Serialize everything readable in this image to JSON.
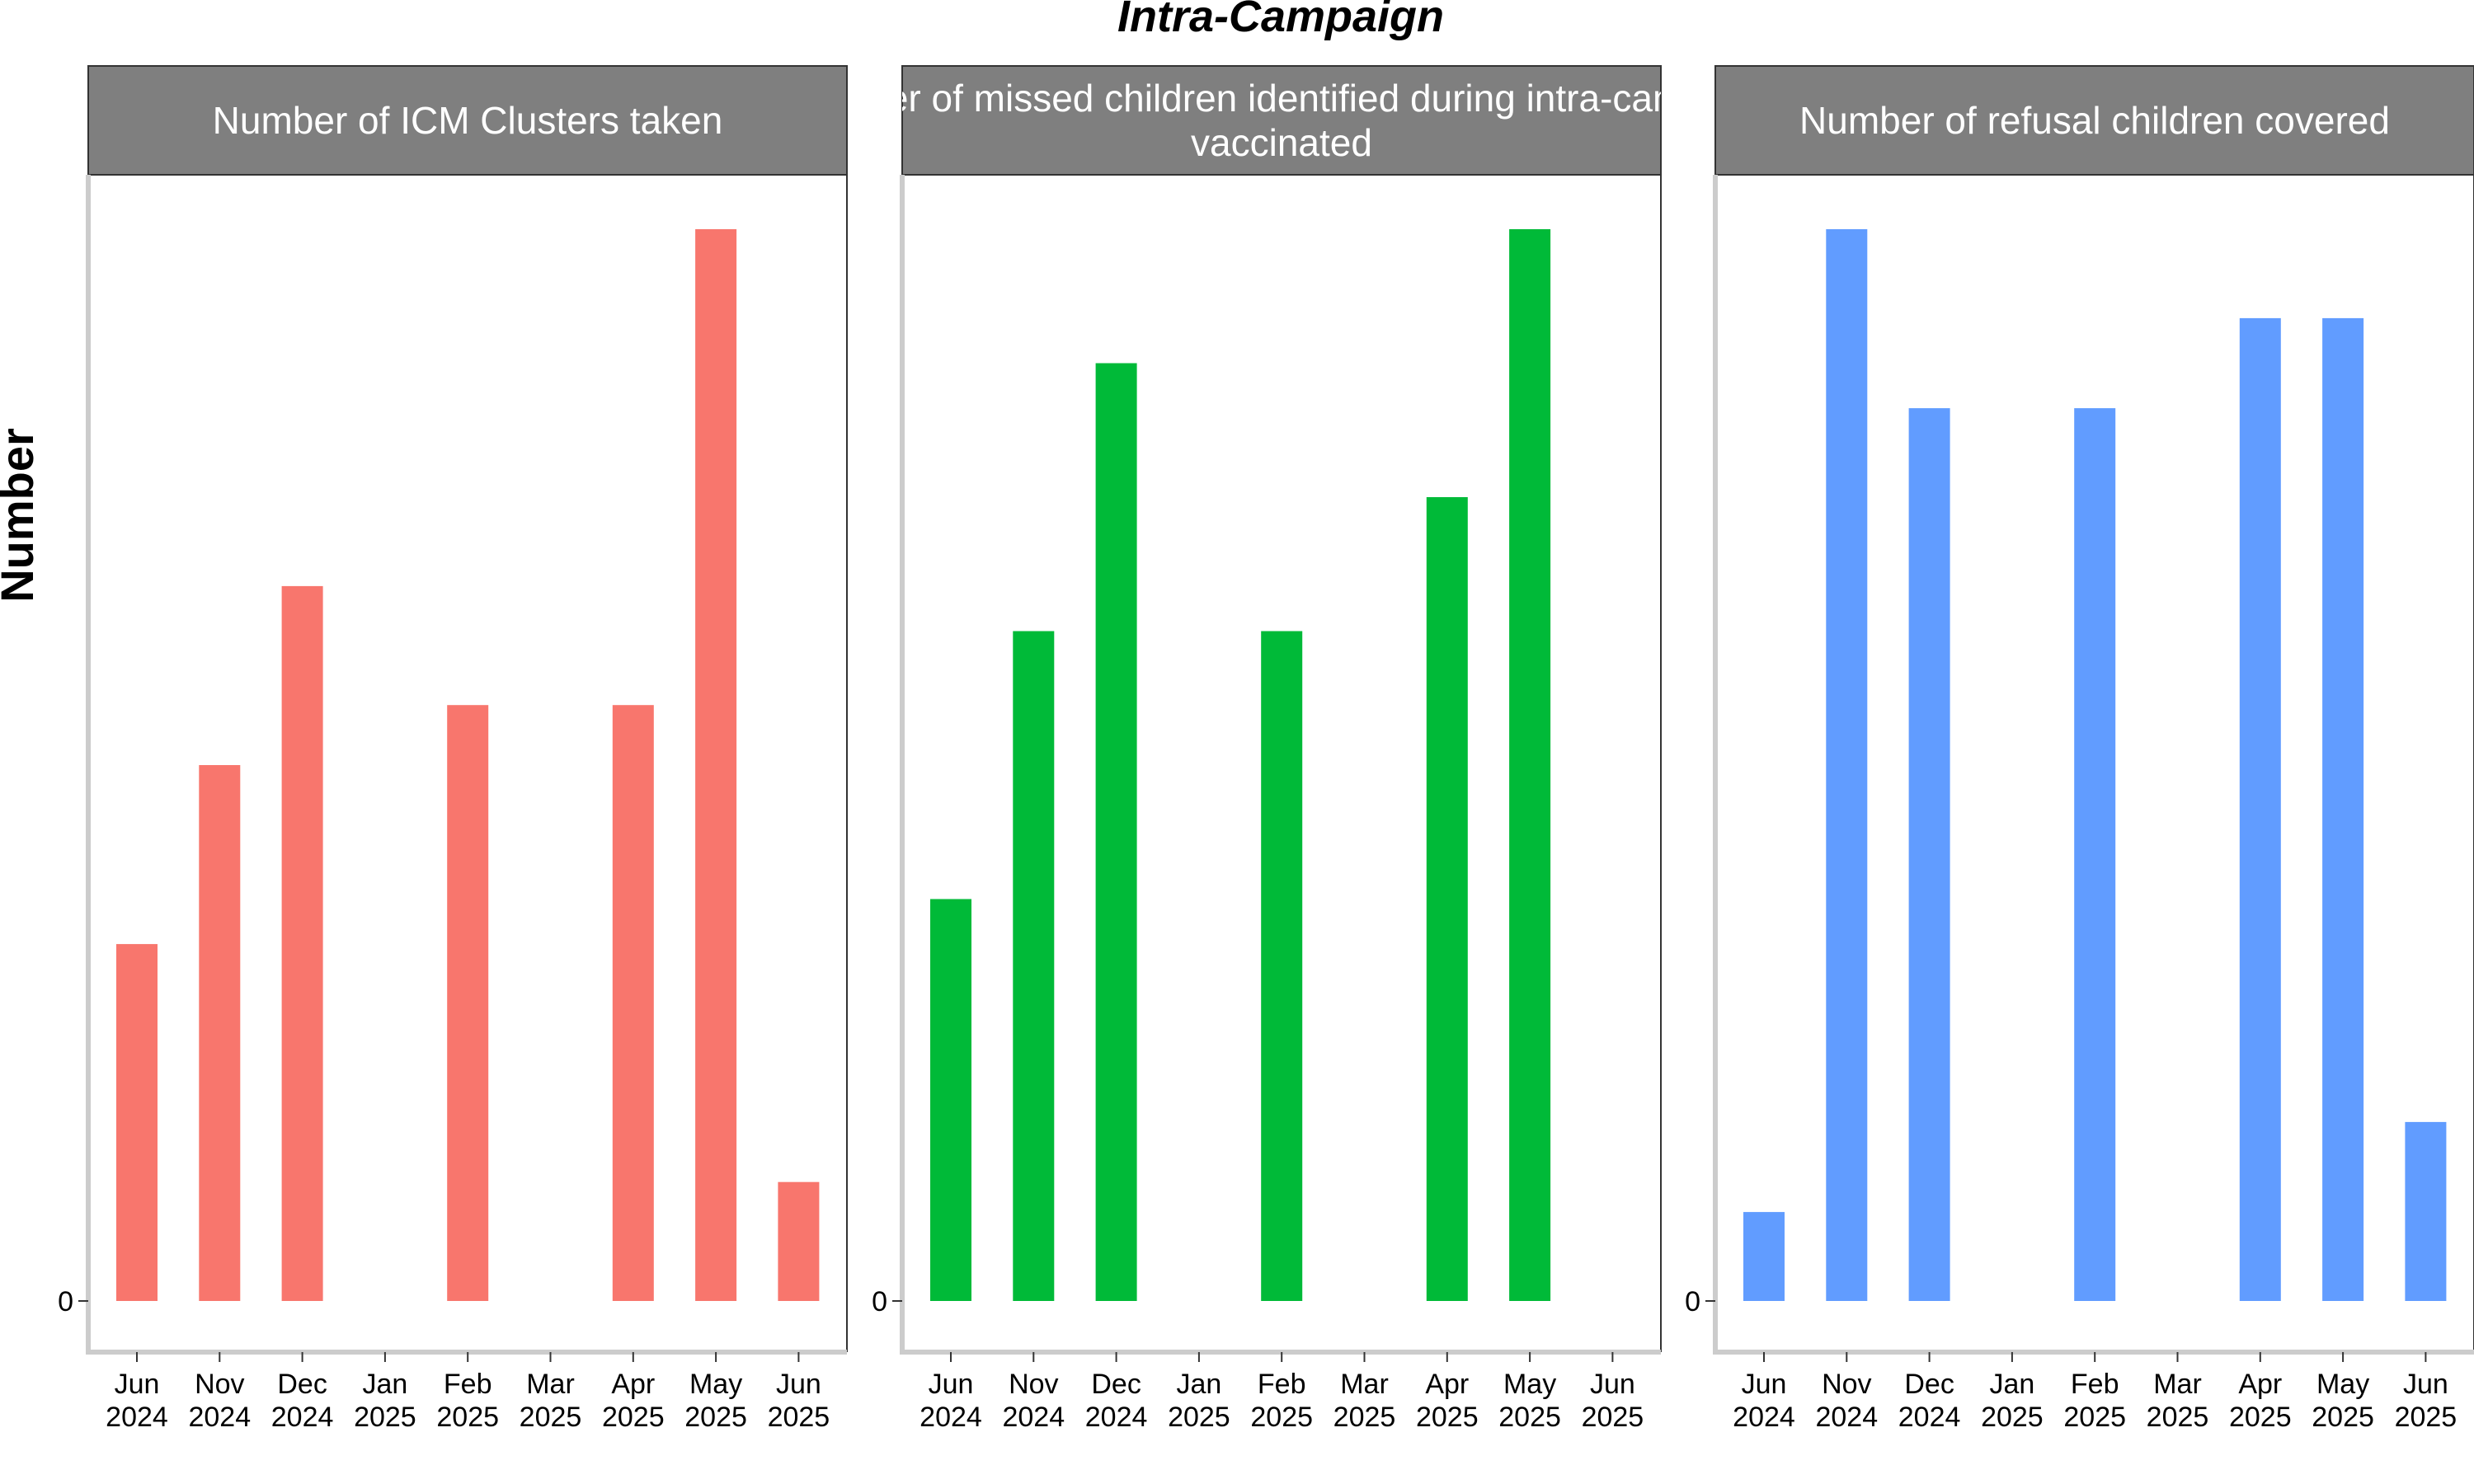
{
  "chart_data": {
    "type": "bar",
    "title": "Intra-Campaign",
    "ylabel": "Number",
    "xlabel": "",
    "categories": [
      "Jun\n2024",
      "Nov\n2024",
      "Dec\n2024",
      "Jan\n2025",
      "Feb\n2025",
      "Mar\n2025",
      "Apr\n2025",
      "May\n2025",
      "Jun\n2025"
    ],
    "y_tick_labels": [
      "0"
    ],
    "ylim": [
      0,
      1.05
    ],
    "grid": false,
    "legend": "none",
    "panels": [
      {
        "strip_lines": [
          "Number of ICM Clusters taken"
        ],
        "color": "#F8766D",
        "values": [
          0.333,
          0.5,
          0.667,
          null,
          0.556,
          null,
          0.556,
          1.0,
          0.111
        ]
      },
      {
        "strip_lines": [
          "Number of missed children identified during intra-campaign",
          "vaccinated"
        ],
        "color": "#00BA38",
        "values": [
          0.375,
          0.625,
          0.875,
          null,
          0.625,
          null,
          0.75,
          1.0,
          null
        ]
      },
      {
        "strip_lines": [
          "Number of refusal children covered"
        ],
        "color": "#619CFF",
        "values": [
          0.083,
          1.0,
          0.833,
          null,
          0.833,
          null,
          0.917,
          0.917,
          0.167
        ]
      }
    ]
  }
}
